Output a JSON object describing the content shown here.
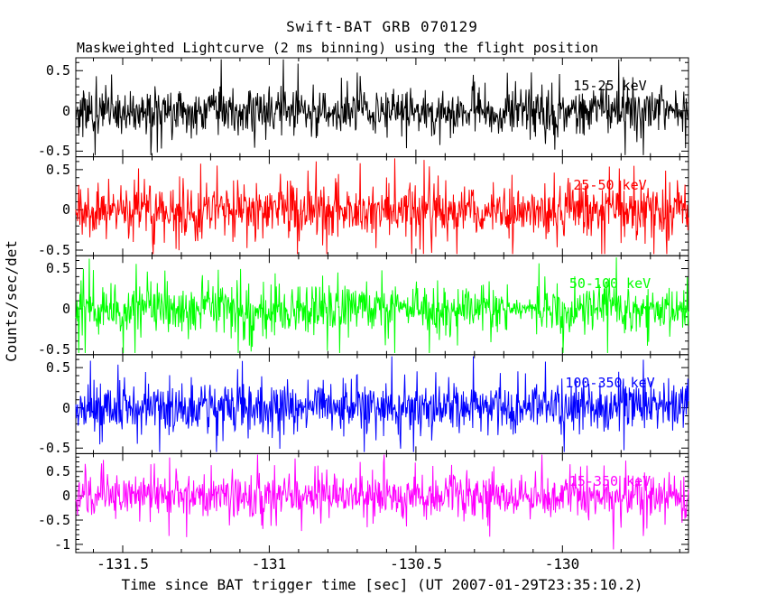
{
  "chart_data": {
    "type": "line",
    "title": "Swift-BAT GRB 070129",
    "subtitle": "Maskweighted Lightcurve (2 ms binning) using the flight position",
    "xlabel": "Time since BAT trigger time [sec] (UT 2007-01-29T23:35:10.2)",
    "ylabel": "Counts/sec/det",
    "background": "#ffffff",
    "axis_color": "#000000",
    "grid": false,
    "xlim": [
      -131.66,
      -129.57
    ],
    "x_major_ticks": [
      -131.5,
      -131,
      -130.5,
      -130
    ],
    "x_tick_labels": [
      "-131.5",
      "-131",
      "-130.5",
      "-130"
    ],
    "x_minor_step": 0.1,
    "y_minor_step": 0.1,
    "bin_ms": 2,
    "n_bins": 1046,
    "series_note": "Each panel is mask-weighted detector noise centered on 0 counts/sec/det with no visible burst; dense 2 ms samples span the full time range. Traces regenerated as seeded heavy-tailed Gaussian noise.",
    "panels": [
      {
        "band": "15-25 keV",
        "color": "#000000",
        "ylim": [
          -0.57,
          0.66
        ],
        "yticks": [
          0.5,
          0,
          -0.5
        ],
        "ytick_labels": [
          "0.5",
          "0",
          "-0.5"
        ],
        "noise_sd": 0.14,
        "seed": 101
      },
      {
        "band": "25-50 keV",
        "color": "#ff0000",
        "ylim": [
          -0.57,
          0.66
        ],
        "yticks": [
          0.5,
          0,
          -0.5
        ],
        "ytick_labels": [
          "0.5",
          "0",
          "-0.5"
        ],
        "noise_sd": 0.16,
        "seed": 202
      },
      {
        "band": "50-100 keV",
        "color": "#00ff00",
        "ylim": [
          -0.57,
          0.66
        ],
        "yticks": [
          0.5,
          0,
          -0.5
        ],
        "ytick_labels": [
          "0.5",
          "0",
          "-0.5"
        ],
        "noise_sd": 0.15,
        "seed": 303,
        "quiet_window": [
          0.705,
          0.75,
          0.3
        ]
      },
      {
        "band": "100-350 keV",
        "color": "#0000ff",
        "ylim": [
          -0.57,
          0.66
        ],
        "yticks": [
          0.5,
          0,
          -0.5
        ],
        "ytick_labels": [
          "0.5",
          "0",
          "-0.5"
        ],
        "noise_sd": 0.15,
        "seed": 404
      },
      {
        "band": "15-350 keV",
        "color": "#ff00ff",
        "ylim": [
          -1.17,
          0.87
        ],
        "yticks": [
          0.5,
          0,
          -0.5,
          -1
        ],
        "ytick_labels": [
          "0.5",
          "0",
          "-0.5",
          "-1"
        ],
        "noise_sd": 0.22,
        "seed": 505
      }
    ]
  }
}
